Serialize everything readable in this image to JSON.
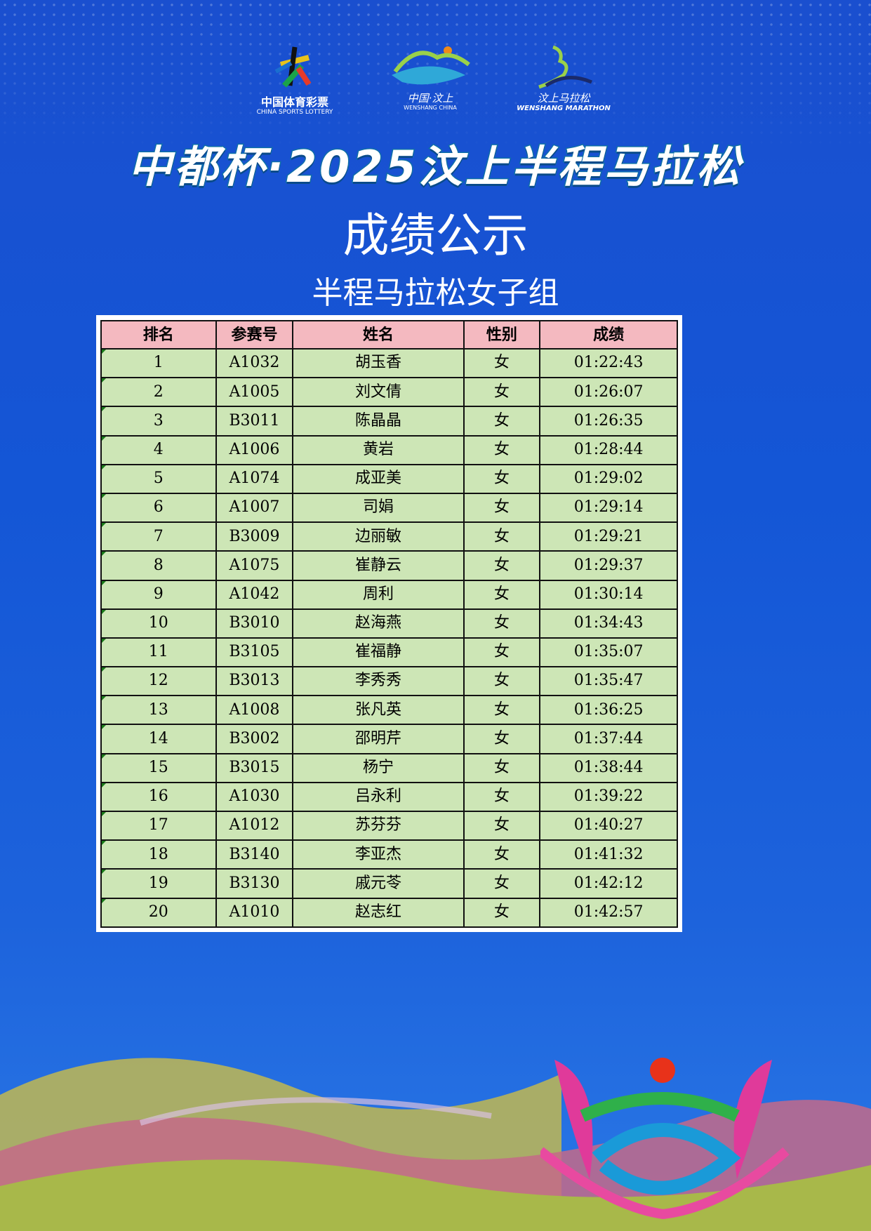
{
  "logos": {
    "lottery": {
      "cn": "中国体育彩票",
      "en": "CHINA SPORTS LOTTERY"
    },
    "wenshang": {
      "cn": "中国·汶上",
      "en": "WENSHANG CHINA"
    },
    "marathon": {
      "cn": "汶上马拉松",
      "en": "WENSHANG MARATHON"
    }
  },
  "title": "中都杯·2025汶上半程马拉松",
  "subtitle": "成绩公示",
  "group": "半程马拉松女子组",
  "table": {
    "headers": [
      "排名",
      "参赛号",
      "姓名",
      "性别",
      "成绩"
    ],
    "rows": [
      [
        "1",
        "A1032",
        "胡玉香",
        "女",
        "01:22:43"
      ],
      [
        "2",
        "A1005",
        "刘文倩",
        "女",
        "01:26:07"
      ],
      [
        "3",
        "B3011",
        "陈晶晶",
        "女",
        "01:26:35"
      ],
      [
        "4",
        "A1006",
        "黄岩",
        "女",
        "01:28:44"
      ],
      [
        "5",
        "A1074",
        "成亚美",
        "女",
        "01:29:02"
      ],
      [
        "6",
        "A1007",
        "司娟",
        "女",
        "01:29:14"
      ],
      [
        "7",
        "B3009",
        "边丽敏",
        "女",
        "01:29:21"
      ],
      [
        "8",
        "A1075",
        "崔静云",
        "女",
        "01:29:37"
      ],
      [
        "9",
        "A1042",
        "周利",
        "女",
        "01:30:14"
      ],
      [
        "10",
        "B3010",
        "赵海燕",
        "女",
        "01:34:43"
      ],
      [
        "11",
        "B3105",
        "崔福静",
        "女",
        "01:35:07"
      ],
      [
        "12",
        "B3013",
        "李秀秀",
        "女",
        "01:35:47"
      ],
      [
        "13",
        "A1008",
        "张凡英",
        "女",
        "01:36:25"
      ],
      [
        "14",
        "B3002",
        "邵明芹",
        "女",
        "01:37:44"
      ],
      [
        "15",
        "B3015",
        "杨宁",
        "女",
        "01:38:44"
      ],
      [
        "16",
        "A1030",
        "吕永利",
        "女",
        "01:39:22"
      ],
      [
        "17",
        "A1012",
        "苏芬芬",
        "女",
        "01:40:27"
      ],
      [
        "18",
        "B3140",
        "李亚杰",
        "女",
        "01:41:32"
      ],
      [
        "19",
        "B3130",
        "戚元苓",
        "女",
        "01:42:12"
      ],
      [
        "20",
        "A1010",
        "赵志红",
        "女",
        "01:42:57"
      ]
    ]
  },
  "colors": {
    "header_bg": "#f4b9c0",
    "row_bg": "#cde6b6",
    "background": "#1456d6"
  }
}
